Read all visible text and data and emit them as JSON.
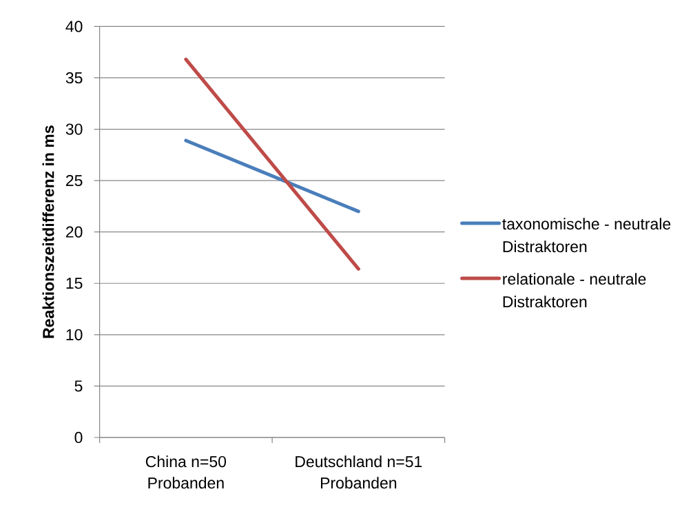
{
  "chart_data": {
    "type": "line",
    "ylabel": "Reaktionszeitdifferenz in ms",
    "categories": [
      "China n=50 Probanden",
      "Deutschland n=51 Probanden"
    ],
    "series": [
      {
        "name": "taxonomische - neutrale Distraktoren",
        "color": "#4a7ebb",
        "values": [
          28.9,
          22.0
        ]
      },
      {
        "name": "relationale - neutrale Distraktoren",
        "color": "#be4b48",
        "values": [
          36.8,
          16.4
        ]
      }
    ],
    "ylim": [
      0,
      40
    ],
    "yticks": [
      0,
      5,
      10,
      15,
      20,
      25,
      30,
      35,
      40
    ],
    "grid": "y",
    "legend": "right"
  }
}
